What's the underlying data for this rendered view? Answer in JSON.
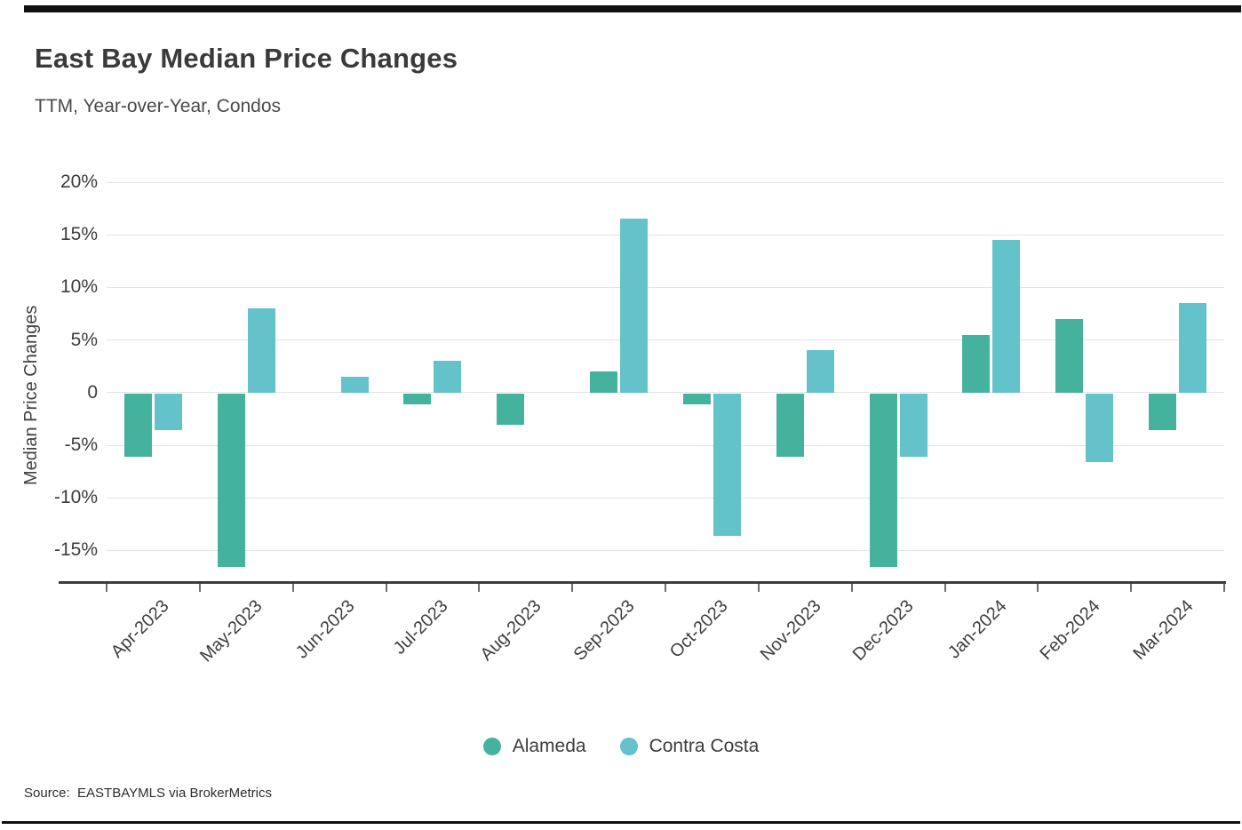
{
  "page": {
    "title": "East Bay Median Price Changes",
    "subtitle": "TTM, Year-over-Year, Condos",
    "source": "Source:  EASTBAYMLS via BrokerMetrics"
  },
  "chart_data": {
    "type": "bar",
    "title": "East Bay Median Price Changes",
    "subtitle": "TTM, Year-over-Year, Condos",
    "xlabel": "",
    "ylabel": "Median Price Changes",
    "categories": [
      "Apr-2023",
      "May-2023",
      "Jun-2023",
      "Jul-2023",
      "Aug-2023",
      "Sep-2023",
      "Oct-2023",
      "Nov-2023",
      "Dec-2023",
      "Jan-2024",
      "Feb-2024",
      "Mar-2024"
    ],
    "series": [
      {
        "name": "Alameda",
        "color": "#45b29d",
        "values": [
          -6,
          -16.5,
          0,
          -1,
          -3,
          2,
          -1,
          -6,
          -16.5,
          5.5,
          7,
          -3.5
        ]
      },
      {
        "name": "Contra Costa",
        "color": "#64c2ca",
        "values": [
          -3.5,
          8,
          1.5,
          3,
          0,
          16.5,
          -13.5,
          4,
          -6,
          14.5,
          -6.5,
          8.5
        ]
      }
    ],
    "value_unit": "%",
    "yticks": [
      20,
      15,
      10,
      5,
      0,
      -5,
      -10,
      -15
    ],
    "ytick_labels": [
      "20%",
      "15%",
      "10%",
      "5%",
      "0",
      "-5%",
      "-10%",
      "-15%"
    ],
    "ylim": [
      -18,
      20
    ],
    "grid": true,
    "legend_position": "bottom"
  }
}
